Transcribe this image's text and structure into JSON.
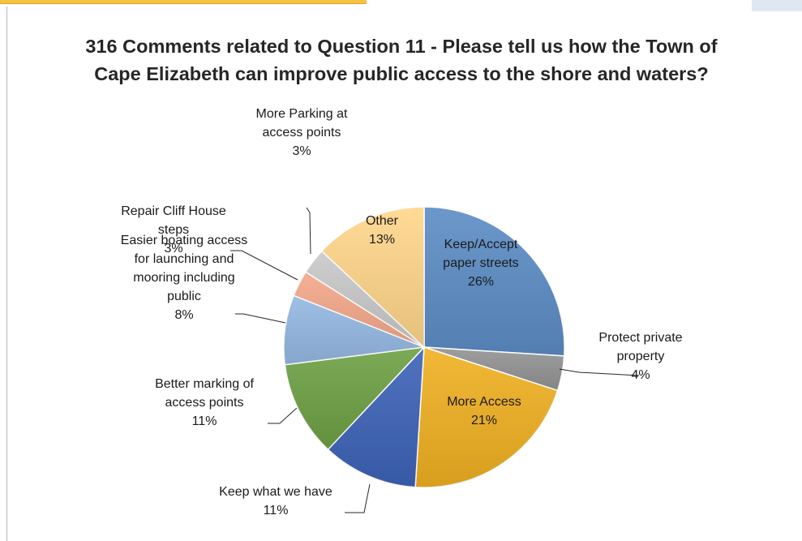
{
  "chart_data": {
    "type": "pie",
    "title": "316 Comments related to Question 11 - Please tell us how the Town of Cape Elizabeth can improve public access to the shore and waters?",
    "slices": [
      {
        "id": "keep-accept",
        "label_lines": [
          "Keep/Accept",
          "paper streets"
        ],
        "pct_text": "26%",
        "value": 26,
        "color": "#5b8cc5"
      },
      {
        "id": "protect-private",
        "label_lines": [
          "Protect private",
          "property"
        ],
        "pct_text": "4%",
        "value": 4,
        "color": "#939393"
      },
      {
        "id": "more-access",
        "label_lines": [
          "More Access"
        ],
        "pct_text": "21%",
        "value": 21,
        "color": "#f0b021"
      },
      {
        "id": "keep-what-we-have",
        "label_lines": [
          "Keep what we have"
        ],
        "pct_text": "11%",
        "value": 11,
        "color": "#3d63b8"
      },
      {
        "id": "better-marking",
        "label_lines": [
          "Better marking of",
          "access points"
        ],
        "pct_text": "11%",
        "value": 11,
        "color": "#6ea044"
      },
      {
        "id": "easier-boating",
        "label_lines": [
          "Easier boating access",
          "for launching and",
          "mooring including",
          "public"
        ],
        "pct_text": "8%",
        "value": 8,
        "color": "#94b8e2"
      },
      {
        "id": "repair-cliff-house",
        "label_lines": [
          "Repair Cliff House",
          "steps"
        ],
        "pct_text": "3%",
        "value": 3,
        "color": "#f4a88a"
      },
      {
        "id": "more-parking",
        "label_lines": [
          "More Parking at",
          "access points"
        ],
        "pct_text": "3%",
        "value": 3,
        "color": "#c9c9c9"
      },
      {
        "id": "other",
        "label_lines": [
          "Other"
        ],
        "pct_text": "13%",
        "value": 13,
        "color": "#ffd68a"
      }
    ]
  }
}
